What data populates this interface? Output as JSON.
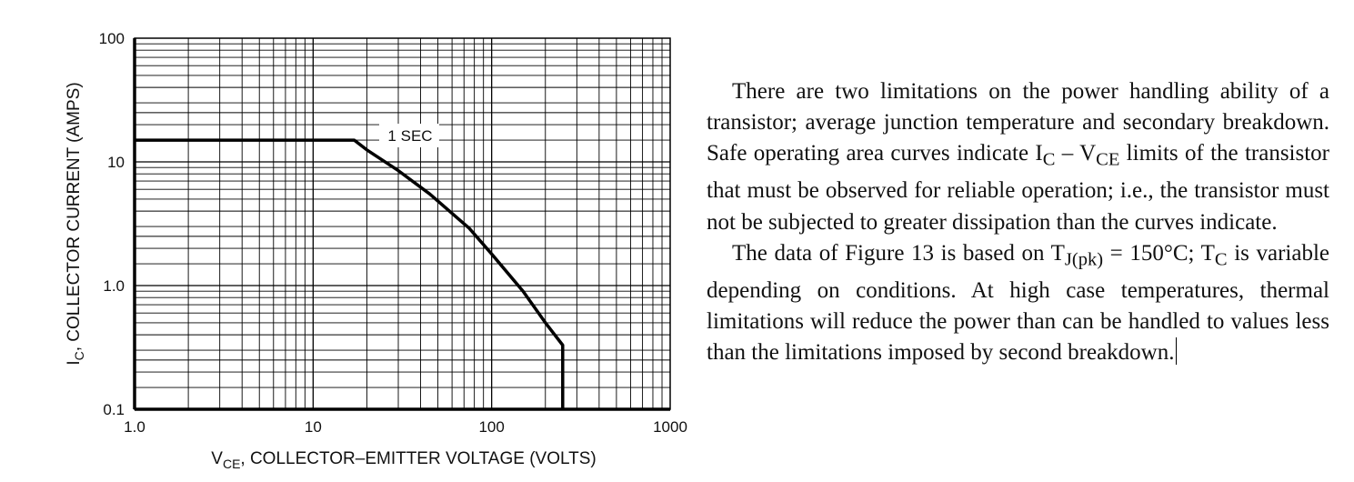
{
  "chart_data": {
    "type": "line",
    "x_scale": "log",
    "y_scale": "log",
    "xlim": [
      1.0,
      1000
    ],
    "ylim": [
      0.1,
      100
    ],
    "x_ticks": [
      "1.0",
      "10",
      "100",
      "1000"
    ],
    "y_ticks": [
      "0.1",
      "1.0",
      "10",
      "100"
    ],
    "xlabel": "V",
    "xlabel_sub": "CE",
    "xlabel_rest": ", COLLECTOR–EMITTER VOLTAGE (VOLTS)",
    "ylabel": "I",
    "ylabel_sub": "C",
    "ylabel_rest": ", COLLECTOR CURRENT (AMPS)",
    "grid": true,
    "annotation": "1 SEC",
    "series": [
      {
        "x": [
          1.0,
          17,
          20,
          30,
          45,
          75,
          100,
          150,
          200,
          250,
          250
        ],
        "y": [
          15,
          15,
          12.5,
          8.5,
          5.5,
          2.9,
          1.8,
          0.9,
          0.5,
          0.33,
          0.1
        ]
      }
    ]
  },
  "text": {
    "p1_a": "There are two limitations on the power handling ability of a transistor; average junction temperature and secondary breakdown. Safe operating area curves indicate I",
    "p1_sub1": "C",
    "p1_b": " – V",
    "p1_sub2": "CE",
    "p1_c": " limits of the transistor that must be observed for reliable operation; i.e., the transistor must not be subjected to greater dissipation than the curves indicate.",
    "p2_a": "The data of Figure 13 is based on T",
    "p2_sub1": "J(pk)",
    "p2_b": " = 150°C; T",
    "p2_sub2": "C",
    "p2_c": " is variable depending on conditions. At high case temperatures, thermal limitations will reduce the power than can be handled to values less than the limitations imposed by second breakdown."
  }
}
